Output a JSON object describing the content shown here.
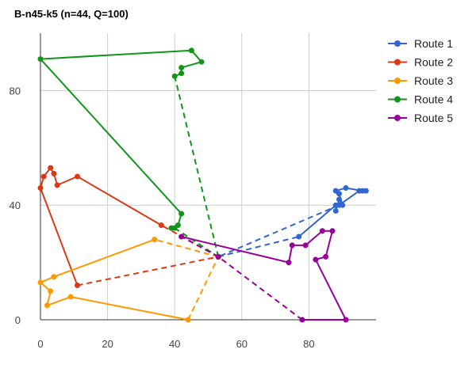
{
  "chart_data": {
    "type": "line",
    "title": "B-n45-k5 (n=44, Q=100)",
    "xlabel": "",
    "ylabel": "",
    "xlim": [
      0,
      100
    ],
    "ylim": [
      0,
      100
    ],
    "xticks": [
      "0",
      "20",
      "40",
      "60",
      "80"
    ],
    "yticks": [
      "0",
      "40",
      "80"
    ],
    "grid": true,
    "legend_position": "right",
    "depot": [
      53,
      22
    ],
    "series": [
      {
        "name": "Route 1",
        "color": "#3366cc",
        "points": [
          [
            53,
            22
          ],
          [
            77,
            29
          ],
          [
            88,
            40
          ],
          [
            88,
            38
          ],
          [
            89,
            42
          ],
          [
            90,
            40
          ],
          [
            89,
            44
          ],
          [
            88,
            45
          ],
          [
            91,
            46
          ],
          [
            96,
            45
          ],
          [
            97,
            45
          ],
          [
            95,
            45
          ],
          [
            89,
            40
          ],
          [
            53,
            22
          ]
        ]
      },
      {
        "name": "Route 2",
        "color": "#dc3912",
        "points": [
          [
            53,
            22
          ],
          [
            36,
            33
          ],
          [
            11,
            50
          ],
          [
            5,
            47
          ],
          [
            4,
            51
          ],
          [
            3,
            53
          ],
          [
            1,
            50
          ],
          [
            0,
            46
          ],
          [
            11,
            12
          ],
          [
            53,
            22
          ]
        ]
      },
      {
        "name": "Route 3",
        "color": "#ff9900",
        "points": [
          [
            53,
            22
          ],
          [
            34,
            28
          ],
          [
            4,
            15
          ],
          [
            0,
            13
          ],
          [
            3,
            10
          ],
          [
            2,
            5
          ],
          [
            9,
            8
          ],
          [
            44,
            0
          ],
          [
            53,
            22
          ]
        ]
      },
      {
        "name": "Route 4",
        "color": "#109618",
        "points": [
          [
            53,
            22
          ],
          [
            40,
            85
          ],
          [
            42,
            86
          ],
          [
            42,
            88
          ],
          [
            48,
            90
          ],
          [
            45,
            94
          ],
          [
            0,
            91
          ],
          [
            42,
            37
          ],
          [
            41,
            33
          ],
          [
            39,
            32
          ],
          [
            40,
            32
          ],
          [
            53,
            22
          ]
        ]
      },
      {
        "name": "Route 5",
        "color": "#990099",
        "points": [
          [
            53,
            22
          ],
          [
            42,
            29
          ],
          [
            74,
            20
          ],
          [
            75,
            26
          ],
          [
            79,
            26
          ],
          [
            84,
            31
          ],
          [
            87,
            31
          ],
          [
            85,
            22
          ],
          [
            82,
            21
          ],
          [
            91,
            0
          ],
          [
            78,
            0
          ],
          [
            53,
            22
          ]
        ]
      }
    ]
  }
}
